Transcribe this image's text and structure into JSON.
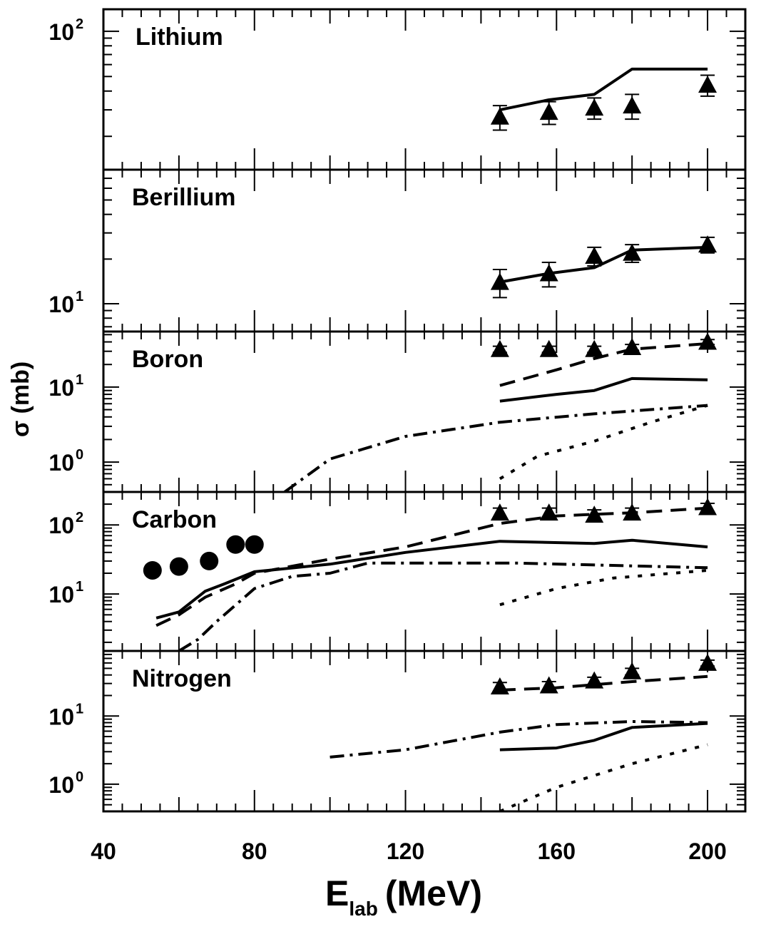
{
  "chart_data": {
    "type": "line",
    "xlabel": {
      "main": "E",
      "sub": "lab",
      "unit": "(MeV)"
    },
    "ylabel": "σ (mb)",
    "xlim": [
      40,
      210
    ],
    "x_ticks": [
      40,
      80,
      120,
      160,
      200
    ],
    "x_tick_labels": [
      "40",
      "80",
      "120",
      "160",
      "200"
    ],
    "yscale": "log",
    "grid": false,
    "legend": "none",
    "panels": [
      {
        "label": "Lithium",
        "ylim": [
          12,
          140
        ],
        "y_tick_labels": [
          {
            "value": 100,
            "base": "10",
            "exp": "2"
          }
        ],
        "series": [
          {
            "style": "solid",
            "x": [
              145,
              158,
              170,
              180,
              200
            ],
            "y": [
              30,
              35,
              38,
              56,
              56
            ]
          },
          {
            "style": "triangle-errorbars",
            "x": [
              145,
              158,
              170,
              180,
              200
            ],
            "y": [
              27,
              29,
              31,
              32,
              44
            ],
            "yerr": [
              5,
              5,
              5,
              6,
              7
            ]
          }
        ]
      },
      {
        "label": "Berillium",
        "ylim": [
          6.5,
          80
        ],
        "y_tick_labels": [
          {
            "value": 10,
            "base": "10",
            "exp": "1"
          }
        ],
        "series": [
          {
            "style": "solid",
            "x": [
              145,
              158,
              170,
              180,
              200
            ],
            "y": [
              14,
              16,
              17.5,
              23,
              24
            ]
          },
          {
            "style": "triangle-errorbars",
            "x": [
              145,
              158,
              170,
              180,
              200
            ],
            "y": [
              14,
              16,
              21,
              22,
              25
            ],
            "yerr": [
              3,
              3,
              3,
              3,
              3
            ]
          }
        ]
      },
      {
        "label": "Boron",
        "ylim": [
          0.4,
          55
        ],
        "y_tick_labels": [
          {
            "value": 10,
            "base": "10",
            "exp": "1"
          },
          {
            "value": 1,
            "base": "10",
            "exp": "0"
          }
        ],
        "series": [
          {
            "style": "solid",
            "x": [
              145,
              160,
              170,
              180,
              200
            ],
            "y": [
              6.5,
              8,
              9,
              13,
              12.5
            ]
          },
          {
            "style": "dashed",
            "x": [
              145,
              160,
              170,
              180,
              200
            ],
            "y": [
              10.5,
              17,
              24,
              32,
              38
            ]
          },
          {
            "style": "dashdot",
            "x": [
              88,
              100,
              120,
              145,
              170,
              200
            ],
            "y": [
              0.4,
              1.1,
              2.2,
              3.4,
              4.4,
              5.7
            ]
          },
          {
            "style": "dotted",
            "x": [
              145,
              155,
              170,
              185,
              200
            ],
            "y": [
              0.6,
              1.2,
              1.9,
              3.4,
              5.7
            ]
          },
          {
            "style": "triangle",
            "x": [
              145,
              158,
              170,
              180,
              200
            ],
            "y": [
              32,
              32,
              32,
              34,
              40
            ],
            "yerr": [
              3,
              3,
              3,
              3,
              3
            ]
          }
        ]
      },
      {
        "label": "Carbon",
        "ylim": [
          1.5,
          300
        ],
        "y_tick_labels": [
          {
            "value": 100,
            "base": "10",
            "exp": "2"
          },
          {
            "value": 10,
            "base": "10",
            "exp": "1"
          }
        ],
        "series": [
          {
            "style": "solid",
            "x": [
              54,
              60,
              67,
              72,
              80,
              100,
              120,
              145,
              170,
              180,
              200
            ],
            "y": [
              4.5,
              5.5,
              11,
              14,
              21,
              27,
              40,
              58,
              54,
              60,
              48
            ]
          },
          {
            "style": "dashed",
            "x": [
              54,
              60,
              67,
              75,
              80,
              100,
              120,
              145,
              160,
              180,
              200
            ],
            "y": [
              3.5,
              5,
              9,
              14,
              20,
              32,
              48,
              105,
              135,
              150,
              175
            ]
          },
          {
            "style": "dashdot",
            "x": [
              60,
              65,
              70,
              80,
              90,
              100,
              110,
              150,
              200
            ],
            "y": [
              1.5,
              2.2,
              4,
              12,
              18,
              20,
              28,
              28,
              24
            ]
          },
          {
            "style": "dotted",
            "x": [
              145,
              160,
              175,
              200
            ],
            "y": [
              7,
              12,
              17,
              22
            ]
          },
          {
            "style": "circle",
            "x": [
              53,
              60,
              68,
              75,
              80
            ],
            "y": [
              22,
              25,
              30,
              52,
              52
            ]
          },
          {
            "style": "triangle",
            "x": [
              145,
              158,
              170,
              180,
              200
            ],
            "y": [
              150,
              150,
              140,
              150,
              180
            ],
            "yerr": [
              25,
              25,
              25,
              25,
              25
            ]
          }
        ]
      },
      {
        "label": "Nitrogen",
        "ylim": [
          0.4,
          90
        ],
        "y_tick_labels": [
          {
            "value": 10,
            "base": "10",
            "exp": "1"
          },
          {
            "value": 1,
            "base": "10",
            "exp": "0"
          }
        ],
        "series": [
          {
            "style": "solid",
            "x": [
              145,
              160,
              170,
              180,
              200
            ],
            "y": [
              3.2,
              3.4,
              4.4,
              6.8,
              7.8
            ]
          },
          {
            "style": "dashed",
            "x": [
              145,
              160,
              180,
              200
            ],
            "y": [
              24,
              26,
              32,
              38
            ]
          },
          {
            "style": "dashdot",
            "x": [
              100,
              120,
              145,
              160,
              180,
              200
            ],
            "y": [
              2.5,
              3.2,
              5.8,
              7.5,
              8.3,
              8.0
            ]
          },
          {
            "style": "dotted",
            "x": [
              145,
              160,
              180,
              200
            ],
            "y": [
              0.4,
              0.9,
              2.0,
              3.8
            ]
          },
          {
            "style": "triangle",
            "x": [
              145,
              158,
              170,
              180,
              200
            ],
            "y": [
              27,
              28,
              33,
              45,
              60
            ],
            "yerr": [
              4,
              4,
              4,
              5,
              6
            ]
          }
        ]
      }
    ]
  }
}
